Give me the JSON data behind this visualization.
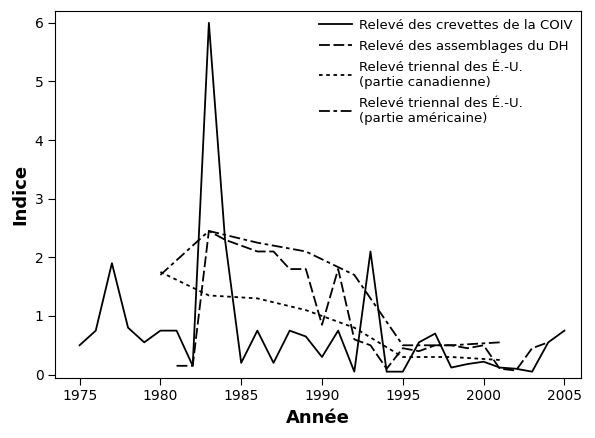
{
  "series1_label": "Relevé des crevettes de la COIV",
  "series1_x": [
    1975,
    1976,
    1977,
    1978,
    1979,
    1980,
    1981,
    1982,
    1983,
    1984,
    1985,
    1986,
    1987,
    1988,
    1989,
    1990,
    1991,
    1992,
    1993,
    1994,
    1995,
    1996,
    1997,
    1998,
    1999,
    2000,
    2001,
    2002,
    2003,
    2004,
    2005
  ],
  "series1_y": [
    0.5,
    0.75,
    1.9,
    0.8,
    0.55,
    0.75,
    0.75,
    0.15,
    6.0,
    2.3,
    0.2,
    0.75,
    0.2,
    0.75,
    0.65,
    0.3,
    0.75,
    0.05,
    2.1,
    0.05,
    0.05,
    0.55,
    0.7,
    0.12,
    0.18,
    0.22,
    0.12,
    0.1,
    0.05,
    0.55,
    0.75
  ],
  "series2_label": "Relevé des assemblages du DH",
  "series2_x": [
    1981,
    1982,
    1983,
    1984,
    1985,
    1986,
    1987,
    1988,
    1989,
    1990,
    1991,
    1992,
    1993,
    1994,
    1995,
    1996,
    1997,
    1998,
    1999,
    2000,
    2001,
    2002,
    2003,
    2004
  ],
  "series2_y": [
    0.15,
    0.15,
    2.45,
    2.3,
    2.2,
    2.1,
    2.1,
    1.8,
    1.8,
    0.85,
    1.8,
    0.6,
    0.5,
    0.1,
    0.45,
    0.4,
    0.5,
    0.5,
    0.45,
    0.5,
    0.1,
    0.07,
    0.45,
    0.55
  ],
  "series3_label": "Relevé triennal des É.-U.\n(partie canadienne)",
  "series3_x": [
    1980,
    1983,
    1986,
    1989,
    1992,
    1995,
    1998,
    2001
  ],
  "series3_y": [
    1.75,
    1.35,
    1.3,
    1.1,
    0.8,
    0.3,
    0.3,
    0.25
  ],
  "series4_label": "Relevé triennal des É.-U.\n(partie américaine)",
  "series4_x": [
    1980,
    1983,
    1986,
    1989,
    1992,
    1995,
    1998,
    2001
  ],
  "series4_y": [
    1.7,
    2.45,
    2.25,
    2.1,
    1.7,
    0.5,
    0.5,
    0.55
  ],
  "xlim": [
    1973.5,
    2006
  ],
  "ylim": [
    -0.05,
    6.2
  ],
  "yticks": [
    0,
    1,
    2,
    3,
    4,
    5,
    6
  ],
  "xticks": [
    1975,
    1980,
    1985,
    1990,
    1995,
    2000,
    2005
  ],
  "xlabel": "Année",
  "ylabel": "Indice",
  "background_color": "#ffffff",
  "line_color": "#000000",
  "legend_fontsize": 9.5,
  "axis_fontsize": 13,
  "tick_labelsize": 10
}
